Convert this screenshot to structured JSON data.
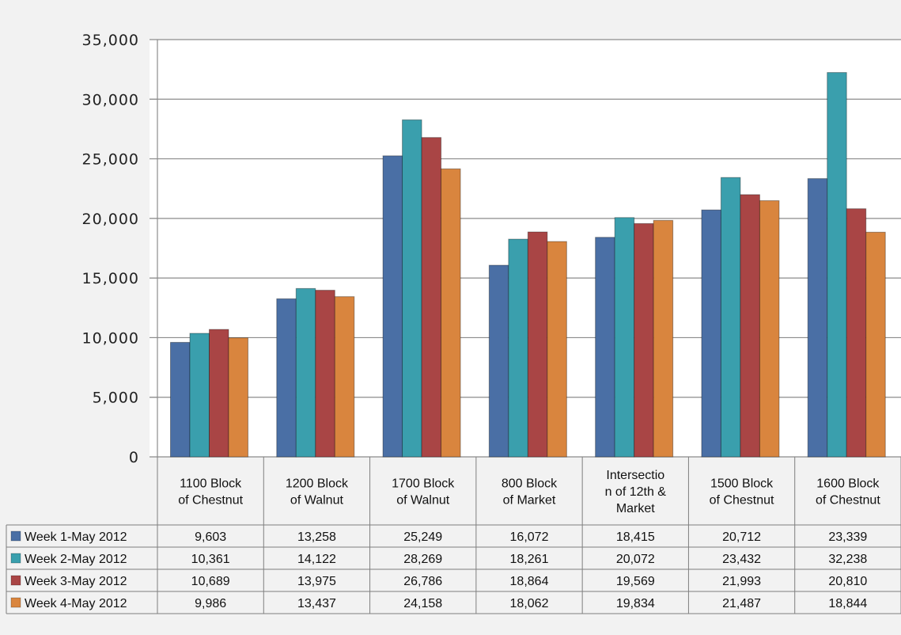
{
  "chart_data": {
    "type": "bar",
    "title": "",
    "xlabel": "",
    "ylabel": "",
    "ylim": [
      0,
      35000
    ],
    "yticks": [
      "0",
      "5,000",
      "10,000",
      "15,000",
      "20,000",
      "25,000",
      "30,000",
      "35,000"
    ],
    "grid": true,
    "legend": "data-table-left",
    "categories": [
      [
        "1100 Block",
        "of Chestnut"
      ],
      [
        "1200 Block",
        "of Walnut"
      ],
      [
        "1700 Block",
        "of Walnut"
      ],
      [
        "800 Block",
        "of Market"
      ],
      [
        "Intersectio",
        "n of 12th &",
        "Market"
      ],
      [
        "1500 Block",
        "of Chestnut"
      ],
      [
        "1600 Block",
        "of Chestnut"
      ]
    ],
    "series": [
      {
        "name": "Week 1-May 2012",
        "color": "#4a6fa5",
        "values": [
          9603,
          13258,
          25249,
          16072,
          18415,
          20712,
          23339
        ],
        "labels": [
          "9,603",
          "13,258",
          "25,249",
          "16,072",
          "18,415",
          "20,712",
          "23,339"
        ]
      },
      {
        "name": "Week 2-May 2012",
        "color": "#3a9fad",
        "values": [
          10361,
          14122,
          28269,
          18261,
          20072,
          23432,
          32238
        ],
        "labels": [
          "10,361",
          "14,122",
          "28,269",
          "18,261",
          "20,072",
          "23,432",
          "32,238"
        ]
      },
      {
        "name": "Week 3-May 2012",
        "color": "#a94545",
        "values": [
          10689,
          13975,
          26786,
          18864,
          19569,
          21993,
          20810
        ],
        "labels": [
          "10,689",
          "13,975",
          "26,786",
          "18,864",
          "19,569",
          "21,993",
          "20,810"
        ]
      },
      {
        "name": "Week 4-May 2012",
        "color": "#d9853e",
        "values": [
          9986,
          13437,
          24158,
          18062,
          19834,
          21487,
          18844
        ],
        "labels": [
          "9,986",
          "13,437",
          "24,158",
          "18,062",
          "19,834",
          "21,487",
          "18,844"
        ]
      }
    ]
  }
}
